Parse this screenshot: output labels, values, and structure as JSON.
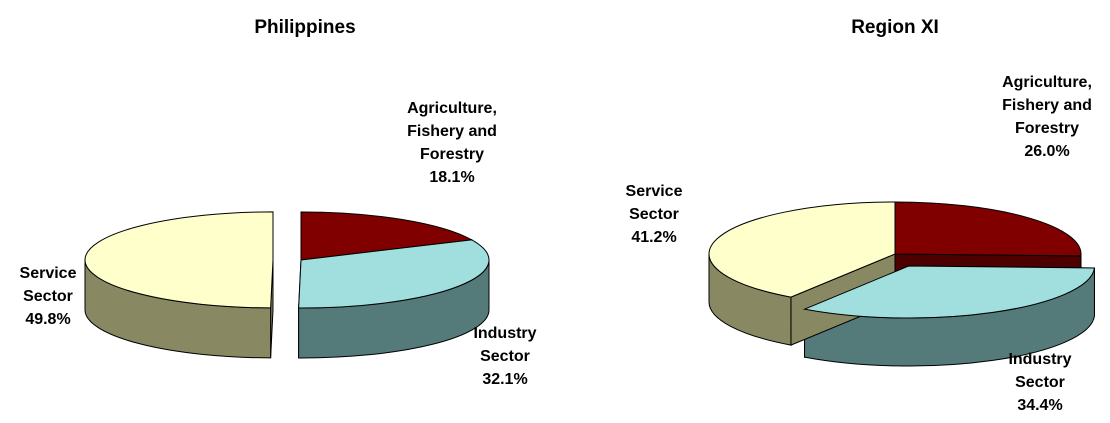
{
  "chart_data": [
    {
      "type": "pie",
      "title": "Philippines",
      "slices": [
        {
          "label": [
            "Agriculture,",
            "Fishery and",
            "Forestry"
          ],
          "value": 18.1,
          "value_label": "18.1%",
          "color": "#800000"
        },
        {
          "label": [
            "Industry",
            "Sector"
          ],
          "value": 32.1,
          "value_label": "32.1%",
          "color": "#a1dfdf"
        },
        {
          "label": [
            "Service",
            "Sector"
          ],
          "value": 49.8,
          "value_label": "49.8%",
          "color": "#ffffcc"
        }
      ],
      "exploded": "Service Sector"
    },
    {
      "type": "pie",
      "title": "Region XI",
      "slices": [
        {
          "label": [
            "Agriculture,",
            "Fishery and",
            "Forestry"
          ],
          "value": 26.0,
          "value_label": "26.0%",
          "color": "#800000"
        },
        {
          "label": [
            "Industry",
            "Sector"
          ],
          "value": 34.4,
          "value_label": "34.4%",
          "color": "#a1dfdf"
        },
        {
          "label": [
            "Service",
            "Sector"
          ],
          "value": 41.2,
          "value_label": "41.2%",
          "color": "#ffffcc"
        }
      ],
      "exploded": "Industry Sector"
    }
  ]
}
